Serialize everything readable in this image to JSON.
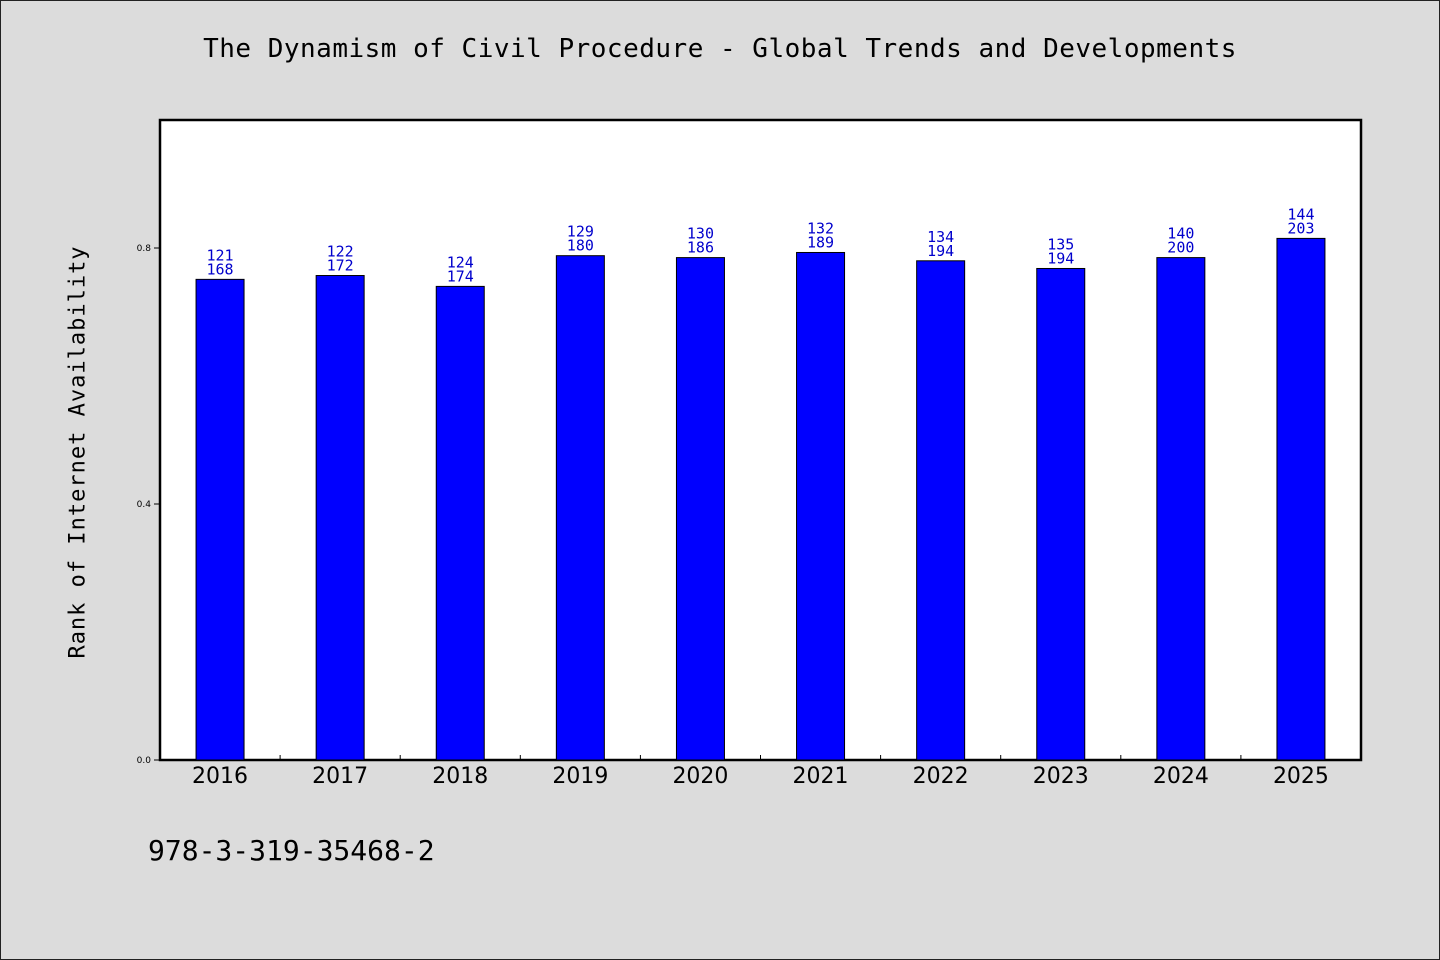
{
  "chart_data": {
    "type": "bar",
    "title": "The Dynamism of Civil Procedure - Global Trends and Developments",
    "xlabel": "",
    "ylabel": "Rank of Internet Availability",
    "categories": [
      "2016",
      "2017",
      "2018",
      "2019",
      "2020",
      "2021",
      "2022",
      "2023",
      "2024",
      "2025"
    ],
    "values": [
      0.751,
      0.757,
      0.74,
      0.788,
      0.785,
      0.793,
      0.78,
      0.768,
      0.785,
      0.815
    ],
    "bar_labels": [
      [
        "121",
        "168"
      ],
      [
        "122",
        "172"
      ],
      [
        "124",
        "174"
      ],
      [
        "129",
        "180"
      ],
      [
        "130",
        "186"
      ],
      [
        "132",
        "189"
      ],
      [
        "134",
        "194"
      ],
      [
        "135",
        "194"
      ],
      [
        "140",
        "200"
      ],
      [
        "144",
        "203"
      ]
    ],
    "ylim": [
      0.0,
      1.0
    ],
    "yticks": [
      "0.0",
      "0.4",
      "0.8"
    ],
    "bar_color": "#0000ff",
    "label_color": "#0000cc",
    "grid": false,
    "legend": "none"
  },
  "footer": {
    "isbn": "978-3-319-35468-2"
  }
}
